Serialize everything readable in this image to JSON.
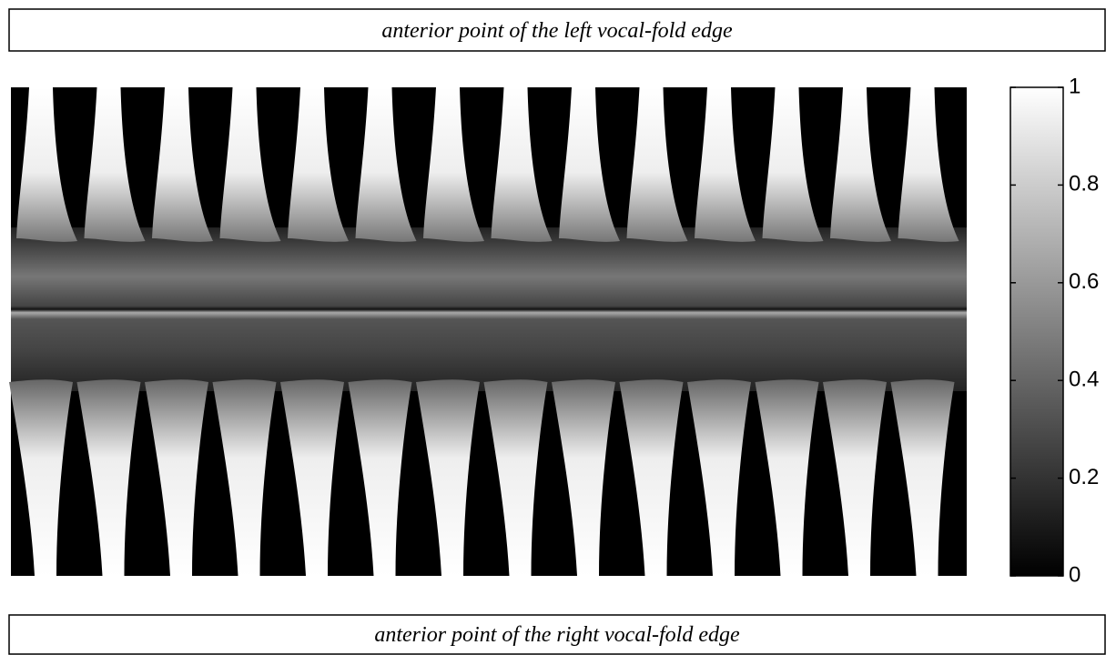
{
  "chart_data": {
    "type": "heatmap",
    "title": "anterior point of the left vocal-fold edge",
    "xlabel": "anterior point of the right vocal-fold edge",
    "colormap": "gray",
    "zlim": [
      0,
      1
    ],
    "zticks": [
      0,
      0.2,
      0.4,
      0.6,
      0.8,
      1
    ]
  }
}
